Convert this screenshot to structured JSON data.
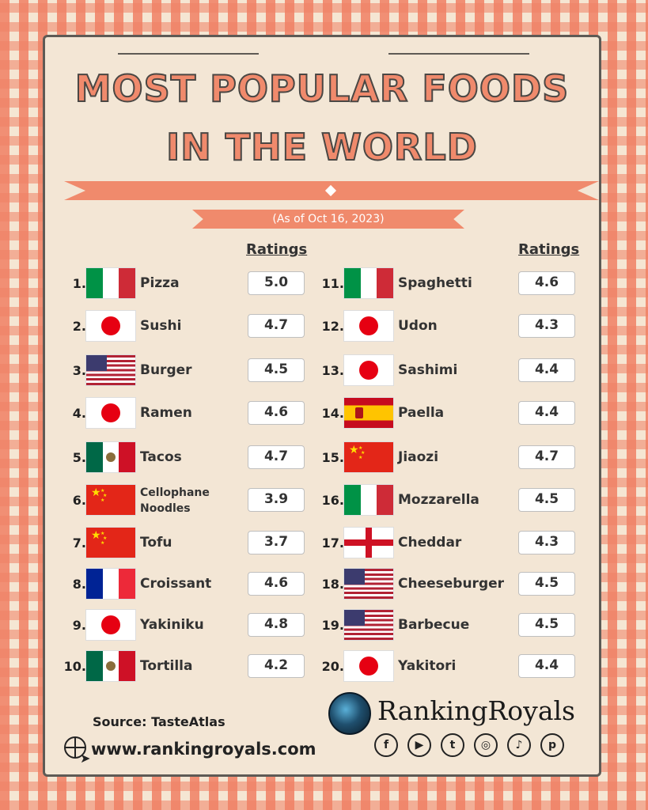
{
  "title": {
    "line1": "MOST POPULAR FOODS",
    "line2": "IN THE WORLD",
    "date": "(As of Oct 16, 2023)"
  },
  "ratings_header": "Ratings",
  "left_column": [
    {
      "rank": "1.",
      "flag": "italy",
      "name": "Pizza",
      "rating": "5.0"
    },
    {
      "rank": "2.",
      "flag": "japan",
      "name": "Sushi",
      "rating": "4.7"
    },
    {
      "rank": "3.",
      "flag": "usa",
      "name": "Burger",
      "rating": "4.5"
    },
    {
      "rank": "4.",
      "flag": "japan",
      "name": "Ramen",
      "rating": "4.6"
    },
    {
      "rank": "5.",
      "flag": "mexico",
      "name": "Tacos",
      "rating": "4.7"
    },
    {
      "rank": "6.",
      "flag": "china",
      "name": "Cellophane Noodles",
      "rating": "3.9"
    },
    {
      "rank": "7.",
      "flag": "china",
      "name": "Tofu",
      "rating": "3.7"
    },
    {
      "rank": "8.",
      "flag": "france",
      "name": "Croissant",
      "rating": "4.6"
    },
    {
      "rank": "9.",
      "flag": "japan",
      "name": "Yakiniku",
      "rating": "4.8"
    },
    {
      "rank": "10.",
      "flag": "mexico",
      "name": "Tortilla",
      "rating": "4.2"
    }
  ],
  "right_column": [
    {
      "rank": "11.",
      "flag": "italy",
      "name": "Spaghetti",
      "rating": "4.6"
    },
    {
      "rank": "12.",
      "flag": "japan",
      "name": "Udon",
      "rating": "4.3"
    },
    {
      "rank": "13.",
      "flag": "japan",
      "name": "Sashimi",
      "rating": "4.4"
    },
    {
      "rank": "14.",
      "flag": "spain",
      "name": "Paella",
      "rating": "4.4"
    },
    {
      "rank": "15.",
      "flag": "china",
      "name": "Jiaozi",
      "rating": "4.7"
    },
    {
      "rank": "16.",
      "flag": "italy",
      "name": "Mozzarella",
      "rating": "4.5"
    },
    {
      "rank": "17.",
      "flag": "england",
      "name": "Cheddar",
      "rating": "4.3"
    },
    {
      "rank": "18.",
      "flag": "usa",
      "name": "Cheeseburger",
      "rating": "4.5"
    },
    {
      "rank": "19.",
      "flag": "usa",
      "name": "Barbecue",
      "rating": "4.5"
    },
    {
      "rank": "20.",
      "flag": "japan",
      "name": "Yakitori",
      "rating": "4.4"
    }
  ],
  "footer": {
    "source": "Source: TasteAtlas",
    "website": "www.rankingroyals.com",
    "brand": "RankingRoyals",
    "social_icons": [
      "facebook-icon",
      "youtube-icon",
      "twitter-icon",
      "instagram-icon",
      "tiktok-icon",
      "pinterest-icon"
    ],
    "social_glyphs": [
      "f",
      "▶",
      "t",
      "◎",
      "♪",
      "p"
    ]
  },
  "colors": {
    "accent": "#f08a6c",
    "background": "#f3e6d5",
    "border": "#5e5a55"
  }
}
